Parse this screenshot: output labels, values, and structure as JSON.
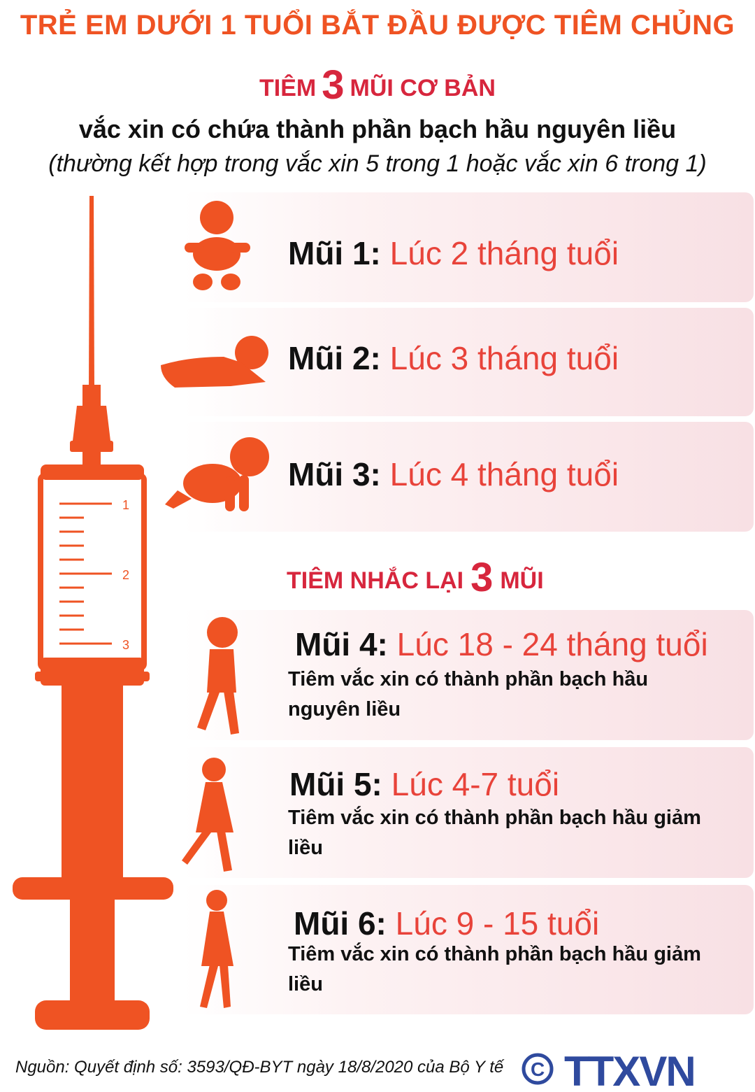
{
  "title": "TRẺ EM DƯỚI 1 TUỔI BẮT ĐẦU ĐƯỢC TIÊM CHỦNG",
  "primary": {
    "prefix": "TIÊM",
    "number": "3",
    "suffix": "MŨI CƠ BẢN"
  },
  "description": "vắc xin có chứa thành phần bạch hầu nguyên liều",
  "description_note": "(thường kết hợp trong vắc xin 5 trong 1 hoặc vắc xin 6 trong 1)",
  "doses": [
    {
      "label": "Mũi 1:",
      "value": "Lúc 2 tháng tuổi",
      "icon": "sitting-baby-icon"
    },
    {
      "label": "Mũi 2:",
      "value": "Lúc 3 tháng tuổi",
      "icon": "lying-baby-icon"
    },
    {
      "label": "Mũi 3:",
      "value": "Lúc 4 tháng tuổi",
      "icon": "crawling-baby-icon"
    }
  ],
  "booster": {
    "prefix": "TIÊM NHẮC LẠI",
    "number": "3",
    "suffix": "MŨI"
  },
  "booster_doses": [
    {
      "label": "Mũi 4:",
      "value": "Lúc 18 - 24 tháng tuổi",
      "note": "Tiêm vắc xin có thành phần bạch hầu nguyên liều",
      "icon": "toddler-icon"
    },
    {
      "label": "Mũi 5:",
      "value": "Lúc 4-7 tuổi",
      "note": "Tiêm vắc xin có thành phần bạch hầu giảm liều",
      "icon": "girl-running-icon"
    },
    {
      "label": "Mũi 6:",
      "value": "Lúc 9 - 15 tuổi",
      "note": "Tiêm vắc xin có thành phần bạch hầu giảm liều",
      "icon": "girl-walking-icon"
    }
  ],
  "syringe_marks": [
    "1",
    "2",
    "3"
  ],
  "source": "Nguồn: Quyết định số: 3593/QĐ-BYT ngày 18/8/2020 của Bộ Y tế",
  "logo": "TTXVN",
  "colors": {
    "orange": "#ef5323",
    "red": "#d7263d",
    "logo_blue": "#2f4a9e"
  }
}
